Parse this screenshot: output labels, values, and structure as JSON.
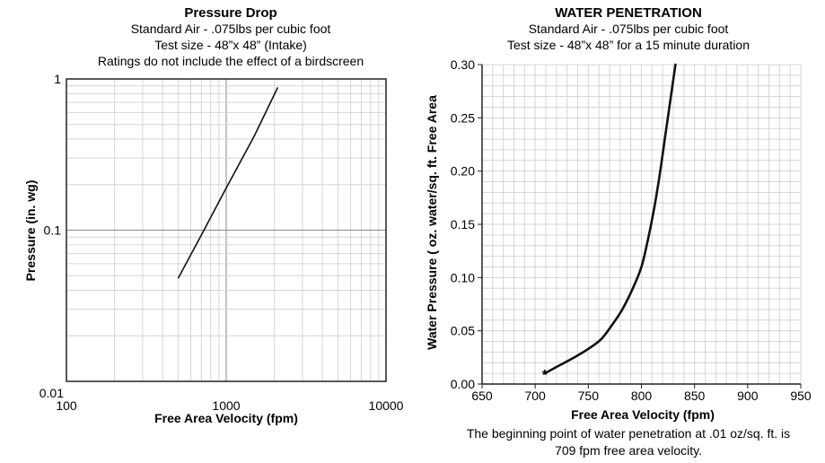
{
  "chart_data": [
    {
      "type": "line",
      "title": "Pressure Drop",
      "subtitle": [
        "Standard Air - .075lbs per cubic foot",
        "Test size - 48”x 48” (Intake)",
        "Ratings do not include the effect of a birdscreen"
      ],
      "xlabel": "Free Area Velocity (fpm)",
      "ylabel": "Pressure (in. wg)",
      "xscale": "log",
      "yscale": "log",
      "xlim": [
        100,
        10000
      ],
      "ylim": [
        0.01,
        1
      ],
      "xticks": [
        "100",
        "1000",
        "10000"
      ],
      "yticks": [
        "0.01",
        "0.1",
        "1"
      ],
      "grid": true,
      "series": [
        {
          "x": [
            500,
            700,
            1000,
            1500,
            2100
          ],
          "y": [
            0.048,
            0.093,
            0.19,
            0.42,
            0.88
          ]
        }
      ]
    },
    {
      "type": "line",
      "title": "WATER PENETRATION",
      "subtitle": [
        "Standard Air - .075lbs per cubic foot",
        "Test size - 48”x 48” for a 15 minute duration"
      ],
      "xlabel": "Free Area Velocity (fpm)",
      "ylabel": "Water Pressure ( oz. water/sq. ft. Free Area",
      "xlim": [
        650,
        950
      ],
      "ylim": [
        0,
        0.3
      ],
      "xticks": [
        "650",
        "700",
        "750",
        "800",
        "850",
        "900",
        "950"
      ],
      "yticks": [
        "0.00",
        "0.05",
        "0.10",
        "0.15",
        "0.20",
        "0.25",
        "0.30"
      ],
      "grid": true,
      "series": [
        {
          "x": [
            709,
            720,
            735,
            750,
            762,
            772,
            782,
            792,
            800,
            806,
            812,
            817,
            822,
            827,
            832
          ],
          "y": [
            0.01,
            0.016,
            0.024,
            0.033,
            0.042,
            0.055,
            0.07,
            0.09,
            0.11,
            0.135,
            0.165,
            0.195,
            0.23,
            0.265,
            0.3
          ]
        }
      ],
      "marker": {
        "x": 709,
        "y": 0.01,
        "symbol": "*"
      },
      "note": [
        "The beginning point of water penetration at .01 oz/sq. ft. is",
        "709 fpm free area velocity."
      ]
    }
  ]
}
